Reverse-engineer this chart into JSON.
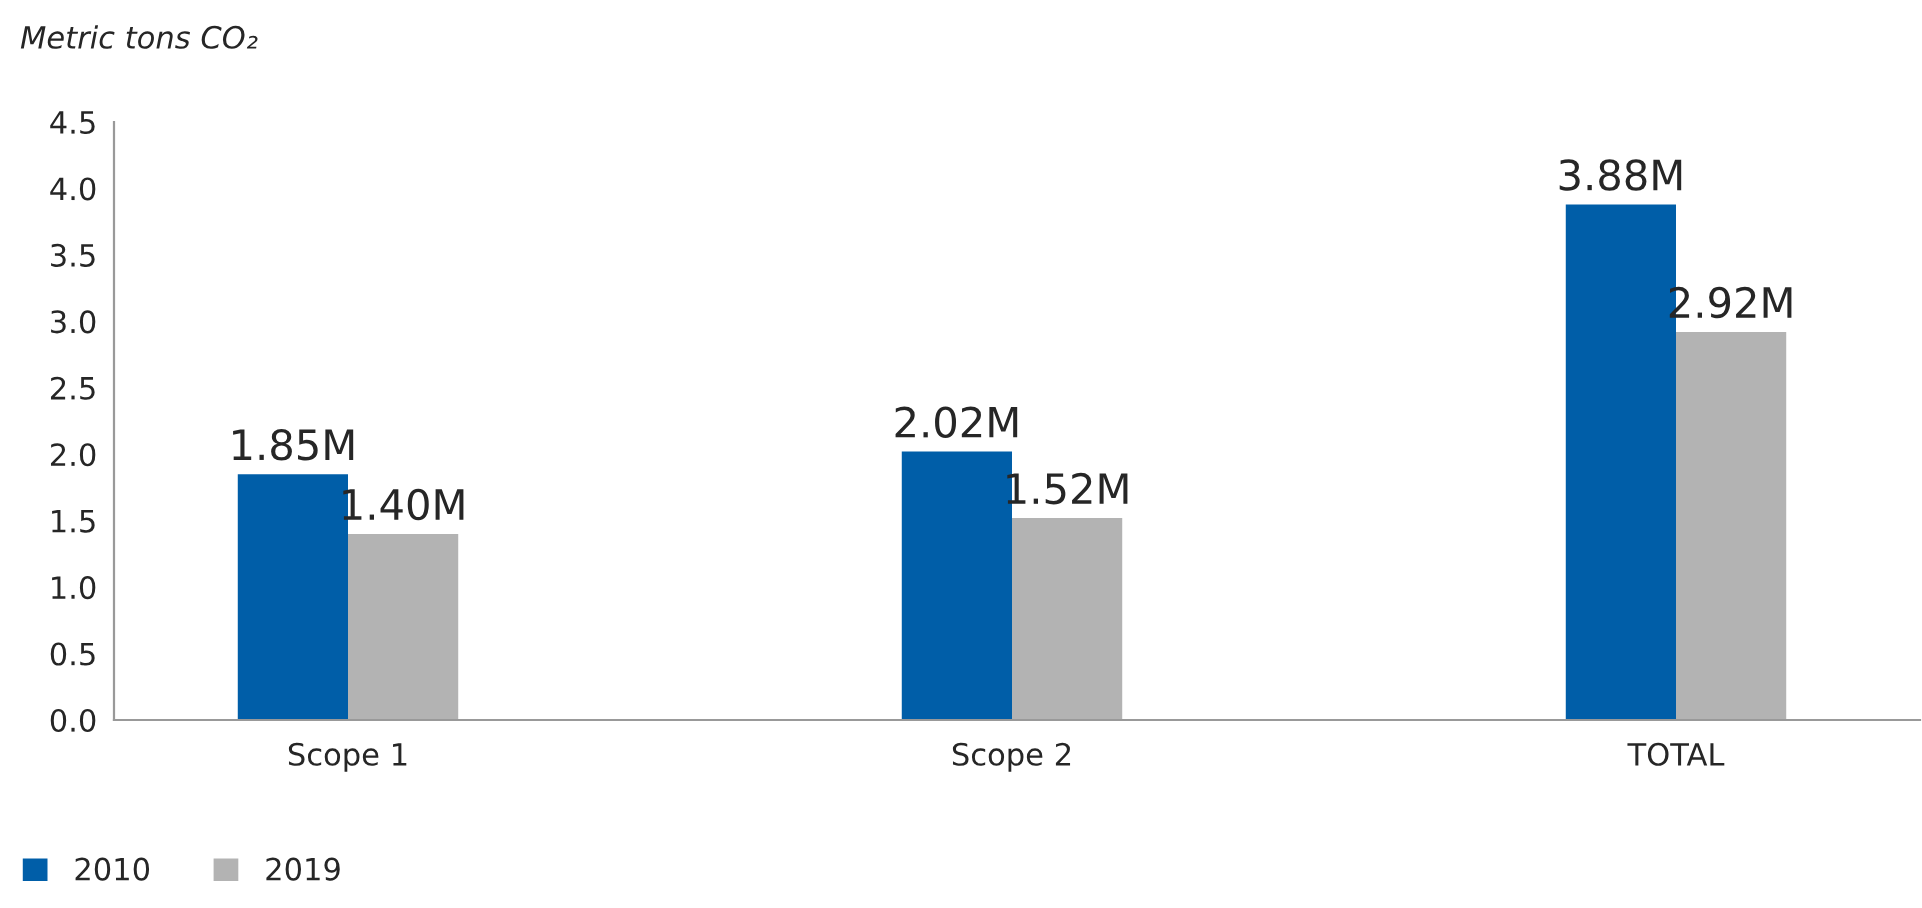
{
  "chart_data": {
    "type": "bar",
    "ylabel": "Metric tons CO₂",
    "categories": [
      "Scope 1",
      "Scope 2",
      "TOTAL"
    ],
    "series": [
      {
        "name": "2010",
        "color": "#005ea8",
        "values": [
          1.85,
          2.02,
          3.88
        ],
        "value_labels": [
          "1.85M",
          "2.02M",
          "3.88M"
        ]
      },
      {
        "name": "2019",
        "color": "#b3b3b3",
        "values": [
          1.4,
          1.52,
          2.92
        ],
        "value_labels": [
          "1.40M",
          "1.52M",
          "2.92M"
        ]
      }
    ],
    "ylim": [
      0,
      4.5
    ],
    "yticks": [
      {
        "value": 0,
        "label": "0.0"
      },
      {
        "value": 0.5,
        "label": "0.5"
      },
      {
        "value": 1,
        "label": "1.0"
      },
      {
        "value": 1.5,
        "label": "1.5"
      },
      {
        "value": 2,
        "label": "2.0"
      },
      {
        "value": 2.5,
        "label": "2.5"
      },
      {
        "value": 3,
        "label": "3.0"
      },
      {
        "value": 3.5,
        "label": "3.5"
      },
      {
        "value": 4,
        "label": "4.0"
      },
      {
        "value": 4.5,
        "label": "4.5"
      }
    ],
    "legend": "bottom left",
    "grid": false
  }
}
